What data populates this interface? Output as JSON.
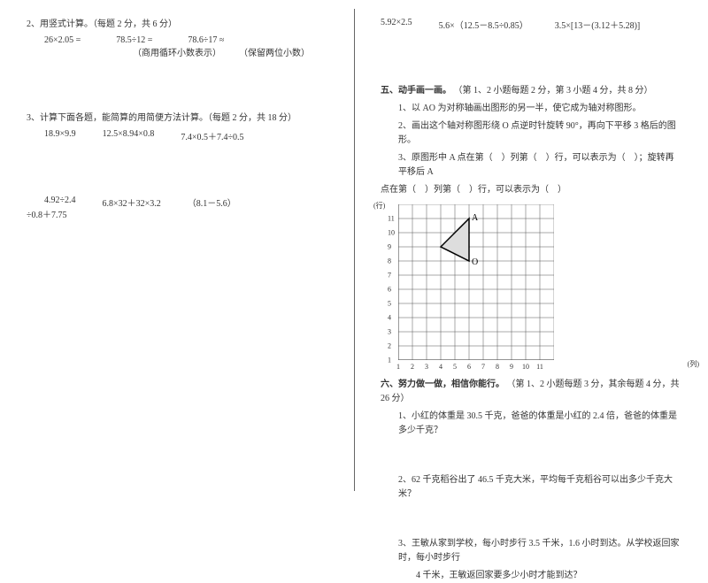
{
  "left": {
    "q2_title": "2、用竖式计算。（每题 2 分，共 6 分）",
    "q2_items": [
      "26×2.05 =",
      "78.5÷12 =",
      "78.6÷17 ≈"
    ],
    "q2_notes": [
      "（商用循环小数表示）",
      "（保留两位小数）"
    ],
    "q3_title": "3、计算下面各题，能简算的用简便方法计算。（每题 2 分，共 18 分）",
    "q3_row1": [
      "18.9×9.9",
      "12.5×8.94×0.8",
      "7.4×0.5＋7.4÷0.5"
    ],
    "q3_row2": [
      "4.92÷2.4",
      "6.8×32＋32×3.2",
      "（8.1－5.6）"
    ],
    "q3_row2_cont": "÷0.8＋7.75"
  },
  "right": {
    "top_row": [
      "5.92×2.5",
      "5.6×（12.5－8.5÷0.85）",
      "3.5×[13－(3.12＋5.28)]"
    ],
    "s5_title": "五、动手画一画。",
    "s5_sub": "（第 1、2 小题每题 2 分，第 3 小题 4 分，共 8 分）",
    "s5_1": "1、以 AO 为对称轴画出图形的另一半，使它成为轴对称图形。",
    "s5_2": "2、画出这个轴对称图形绕 O 点逆时针旋转 90°，再向下平移 3 格后的图形。",
    "s5_3a": "3、原图形中 A 点在第（　）列第（　）行，可以表示为（　）；旋转再平移后 A",
    "s5_3b": "点在第（　）列第（　）行，可以表示为（　）",
    "grid": {
      "cols": 11,
      "rows": 11,
      "cell": 16,
      "y_labels": [
        "1",
        "2",
        "3",
        "4",
        "5",
        "6",
        "7",
        "8",
        "9",
        "10",
        "11"
      ],
      "x_labels": [
        "1",
        "2",
        "3",
        "4",
        "5",
        "6",
        "7",
        "8",
        "9",
        "10",
        "11"
      ],
      "y_title": "(行)",
      "x_title": "(列)",
      "triangle": {
        "O": [
          6,
          8
        ],
        "A": [
          6,
          11
        ],
        "P": [
          4,
          9
        ]
      },
      "label_A": "A",
      "label_O": "O",
      "stroke": "#555555",
      "fill": "#dddddd"
    },
    "s6_title": "六、努力做一做，相信你能行。",
    "s6_sub": "（第 1、2 小题每题 3 分，其余每题 4 分，共 26 分）",
    "s6_1": "1、小红的体重是 30.5 千克，爸爸的体重是小红的 2.4 倍，爸爸的体重是多少千克？",
    "s6_2": "2、62 千克稻谷出了 46.5 千克大米，平均每千克稻谷可以出多少千克大米？",
    "s6_3a": "3、王敏从家到学校，每小时步行 3.5 千米，1.6 小时到达。从学校返回家时，每小时步行",
    "s6_3b": "4 千米，王敏返回家要多少小时才能到达？"
  }
}
